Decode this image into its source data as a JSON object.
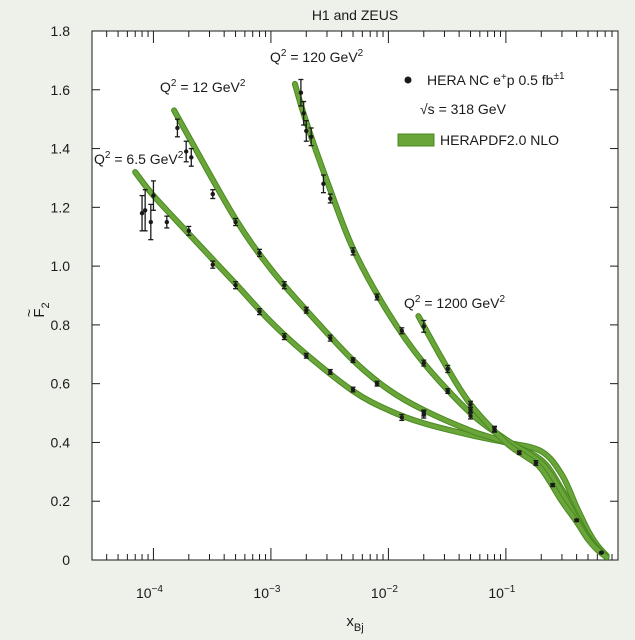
{
  "chart_data": {
    "type": "scatter",
    "title": "H1 and ZEUS",
    "xlabel_main": "x",
    "xlabel_sub": "Bj",
    "ylabel_main": "F",
    "ylabel_sub": "2",
    "ylabel_accent": "~",
    "xscale": "log",
    "xlim": [
      3e-05,
      0.9
    ],
    "ylim": [
      0,
      1.8
    ],
    "yticks": [
      "0",
      "0.2",
      "0.4",
      "0.6",
      "0.8",
      "1.0",
      "1.2",
      "1.4",
      "1.6",
      "1.8"
    ],
    "xticks": [
      {
        "base": "10",
        "exp": "−4",
        "value": 0.0001
      },
      {
        "base": "10",
        "exp": "−3",
        "value": 0.001
      },
      {
        "base": "10",
        "exp": "−2",
        "value": 0.01
      },
      {
        "base": "10",
        "exp": "−1",
        "value": 0.1
      }
    ],
    "legend": {
      "placement": "top-right",
      "data_label": "HERA NC e",
      "data_label_sup": "+",
      "data_label_tail": "p 0.5 fb",
      "data_label_tail_sup": "±1",
      "sqrt_s": "√s = 318 GeV",
      "band_label": "HERAPDF2.0 NLO"
    },
    "colors": {
      "band": "#6aa53a",
      "band_edge": "#4a8a22",
      "points": "#1a1a1a",
      "background": "#eef1e9"
    },
    "series": [
      {
        "label_pre": "Q",
        "label_sup": "2",
        "label_post": " = 6.5 GeV",
        "label_sup2": "2",
        "points": [
          {
            "x": 8e-05,
            "y": 1.18,
            "e": 0.06
          },
          {
            "x": 8.5e-05,
            "y": 1.19,
            "e": 0.07
          },
          {
            "x": 9.5e-05,
            "y": 1.15,
            "e": 0.06
          },
          {
            "x": 0.0001,
            "y": 1.24,
            "e": 0.05
          },
          {
            "x": 0.00013,
            "y": 1.15,
            "e": 0.02
          },
          {
            "x": 0.0002,
            "y": 1.12,
            "e": 0.015
          },
          {
            "x": 0.00032,
            "y": 1.005,
            "e": 0.012
          },
          {
            "x": 0.0005,
            "y": 0.935,
            "e": 0.012
          },
          {
            "x": 0.0008,
            "y": 0.845,
            "e": 0.01
          },
          {
            "x": 0.0013,
            "y": 0.76,
            "e": 0.01
          },
          {
            "x": 0.002,
            "y": 0.695,
            "e": 0.008
          },
          {
            "x": 0.0032,
            "y": 0.64,
            "e": 0.008
          },
          {
            "x": 0.005,
            "y": 0.58,
            "e": 0.008
          },
          {
            "x": 0.013,
            "y": 0.485,
            "e": 0.01
          },
          {
            "x": 0.02,
            "y": 0.495,
            "e": 0.012
          }
        ],
        "curve": [
          {
            "x": 7e-05,
            "y": 1.32
          },
          {
            "x": 0.0001,
            "y": 1.24
          },
          {
            "x": 0.0002,
            "y": 1.11
          },
          {
            "x": 0.0005,
            "y": 0.94
          },
          {
            "x": 0.001,
            "y": 0.81
          },
          {
            "x": 0.002,
            "y": 0.7
          },
          {
            "x": 0.005,
            "y": 0.575
          },
          {
            "x": 0.01,
            "y": 0.51
          },
          {
            "x": 0.02,
            "y": 0.465
          },
          {
            "x": 0.05,
            "y": 0.425
          },
          {
            "x": 0.1,
            "y": 0.4
          },
          {
            "x": 0.2,
            "y": 0.37
          },
          {
            "x": 0.3,
            "y": 0.29
          },
          {
            "x": 0.4,
            "y": 0.18
          },
          {
            "x": 0.5,
            "y": 0.1
          },
          {
            "x": 0.6,
            "y": 0.05
          },
          {
            "x": 0.72,
            "y": 0.015
          }
        ]
      },
      {
        "label_pre": "Q",
        "label_sup": "2",
        "label_post": " = 12 GeV",
        "label_sup2": "2",
        "points": [
          {
            "x": 0.00016,
            "y": 1.47,
            "e": 0.03
          },
          {
            "x": 0.00019,
            "y": 1.39,
            "e": 0.035
          },
          {
            "x": 0.00021,
            "y": 1.37,
            "e": 0.03
          },
          {
            "x": 0.00032,
            "y": 1.245,
            "e": 0.015
          },
          {
            "x": 0.0005,
            "y": 1.15,
            "e": 0.012
          },
          {
            "x": 0.0008,
            "y": 1.045,
            "e": 0.012
          },
          {
            "x": 0.0013,
            "y": 0.935,
            "e": 0.012
          },
          {
            "x": 0.002,
            "y": 0.85,
            "e": 0.01
          },
          {
            "x": 0.0032,
            "y": 0.755,
            "e": 0.01
          },
          {
            "x": 0.005,
            "y": 0.68,
            "e": 0.008
          },
          {
            "x": 0.008,
            "y": 0.6,
            "e": 0.008
          },
          {
            "x": 0.02,
            "y": 0.5,
            "e": 0.01
          },
          {
            "x": 0.05,
            "y": 0.49,
            "e": 0.01
          }
        ],
        "curve": [
          {
            "x": 0.00015,
            "y": 1.53
          },
          {
            "x": 0.0002,
            "y": 1.44
          },
          {
            "x": 0.0005,
            "y": 1.16
          },
          {
            "x": 0.001,
            "y": 0.99
          },
          {
            "x": 0.002,
            "y": 0.85
          },
          {
            "x": 0.005,
            "y": 0.68
          },
          {
            "x": 0.01,
            "y": 0.58
          },
          {
            "x": 0.02,
            "y": 0.51
          },
          {
            "x": 0.05,
            "y": 0.44
          },
          {
            "x": 0.1,
            "y": 0.4
          },
          {
            "x": 0.2,
            "y": 0.34
          },
          {
            "x": 0.3,
            "y": 0.24
          },
          {
            "x": 0.4,
            "y": 0.15
          },
          {
            "x": 0.5,
            "y": 0.08
          },
          {
            "x": 0.6,
            "y": 0.04
          },
          {
            "x": 0.72,
            "y": 0.012
          }
        ]
      },
      {
        "label_pre": "Q",
        "label_sup": "2",
        "label_post": " = 120 GeV",
        "label_sup2": "2",
        "points": [
          {
            "x": 0.0018,
            "y": 1.59,
            "e": 0.045
          },
          {
            "x": 0.0019,
            "y": 1.52,
            "e": 0.04
          },
          {
            "x": 0.002,
            "y": 1.46,
            "e": 0.035
          },
          {
            "x": 0.0022,
            "y": 1.44,
            "e": 0.03
          },
          {
            "x": 0.0028,
            "y": 1.28,
            "e": 0.03
          },
          {
            "x": 0.0032,
            "y": 1.23,
            "e": 0.015
          },
          {
            "x": 0.005,
            "y": 1.05,
            "e": 0.012
          },
          {
            "x": 0.008,
            "y": 0.895,
            "e": 0.01
          },
          {
            "x": 0.013,
            "y": 0.78,
            "e": 0.01
          },
          {
            "x": 0.02,
            "y": 0.67,
            "e": 0.01
          },
          {
            "x": 0.032,
            "y": 0.575,
            "e": 0.008
          },
          {
            "x": 0.05,
            "y": 0.51,
            "e": 0.008
          },
          {
            "x": 0.08,
            "y": 0.445,
            "e": 0.008
          }
        ],
        "curve": [
          {
            "x": 0.0016,
            "y": 1.62
          },
          {
            "x": 0.002,
            "y": 1.49
          },
          {
            "x": 0.003,
            "y": 1.29
          },
          {
            "x": 0.005,
            "y": 1.06
          },
          {
            "x": 0.01,
            "y": 0.84
          },
          {
            "x": 0.02,
            "y": 0.67
          },
          {
            "x": 0.05,
            "y": 0.5
          },
          {
            "x": 0.1,
            "y": 0.41
          },
          {
            "x": 0.2,
            "y": 0.33
          },
          {
            "x": 0.3,
            "y": 0.23
          },
          {
            "x": 0.4,
            "y": 0.14
          },
          {
            "x": 0.5,
            "y": 0.075
          },
          {
            "x": 0.6,
            "y": 0.035
          },
          {
            "x": 0.72,
            "y": 0.01
          }
        ]
      },
      {
        "label_pre": "Q",
        "label_sup": "2",
        "label_post": " = 1200 GeV",
        "label_sup2": "2",
        "points": [
          {
            "x": 0.02,
            "y": 0.795,
            "e": 0.02
          },
          {
            "x": 0.032,
            "y": 0.65,
            "e": 0.012
          },
          {
            "x": 0.05,
            "y": 0.53,
            "e": 0.01
          },
          {
            "x": 0.08,
            "y": 0.445,
            "e": 0.01
          },
          {
            "x": 0.13,
            "y": 0.365,
            "e": 0.006
          },
          {
            "x": 0.18,
            "y": 0.33,
            "e": 0.008
          },
          {
            "x": 0.25,
            "y": 0.255,
            "e": 0.005
          },
          {
            "x": 0.4,
            "y": 0.135,
            "e": 0.004
          },
          {
            "x": 0.65,
            "y": 0.025,
            "e": 0.002
          }
        ],
        "curve": [
          {
            "x": 0.018,
            "y": 0.83
          },
          {
            "x": 0.03,
            "y": 0.67
          },
          {
            "x": 0.05,
            "y": 0.53
          },
          {
            "x": 0.1,
            "y": 0.4
          },
          {
            "x": 0.15,
            "y": 0.35
          },
          {
            "x": 0.2,
            "y": 0.31
          },
          {
            "x": 0.3,
            "y": 0.2
          },
          {
            "x": 0.4,
            "y": 0.13
          },
          {
            "x": 0.5,
            "y": 0.07
          },
          {
            "x": 0.6,
            "y": 0.035
          },
          {
            "x": 0.72,
            "y": 0.01
          }
        ]
      }
    ]
  }
}
